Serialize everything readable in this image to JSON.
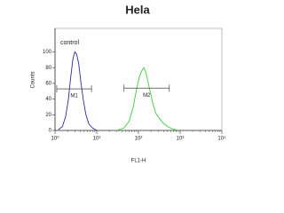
{
  "chart_data": {
    "type": "line",
    "title": "Hela",
    "xlabel": "FL1-H",
    "ylabel": "Counts",
    "annotation": "control",
    "xscale": "log",
    "xlim": [
      1,
      10000
    ],
    "xticks": [
      {
        "value": 1,
        "label": "10⁰"
      },
      {
        "value": 10,
        "label": "10¹"
      },
      {
        "value": 100,
        "label": "10²"
      },
      {
        "value": 1000,
        "label": "10³"
      },
      {
        "value": 10000,
        "label": "10⁴"
      }
    ],
    "ylim": [
      0,
      130
    ],
    "yticks": [
      0,
      20,
      40,
      60,
      80,
      100
    ],
    "series": [
      {
        "color": "#2b2b9e",
        "x": [
          1.2,
          1.5,
          1.8,
          2.1,
          2.4,
          2.7,
          3.0,
          3.3,
          3.7,
          4.2,
          4.8,
          5.5,
          6.5,
          8,
          10
        ],
        "values": [
          1,
          5,
          18,
          40,
          70,
          92,
          100,
          97,
          85,
          60,
          38,
          20,
          8,
          3,
          0
        ]
      },
      {
        "color": "#3ccc3c",
        "x": [
          30,
          45,
          60,
          75,
          90,
          105,
          120,
          135,
          150,
          170,
          190,
          220,
          260,
          320,
          400,
          500,
          650,
          900
        ],
        "values": [
          0,
          3,
          12,
          30,
          52,
          68,
          76,
          80,
          74,
          62,
          50,
          35,
          22,
          15,
          9,
          5,
          2,
          0
        ]
      }
    ],
    "markers": [
      {
        "label": "M1",
        "range": [
          1.1,
          7.5
        ],
        "level": 53
      },
      {
        "label": "M2",
        "range": [
          45,
          550
        ],
        "level": 54
      }
    ]
  }
}
